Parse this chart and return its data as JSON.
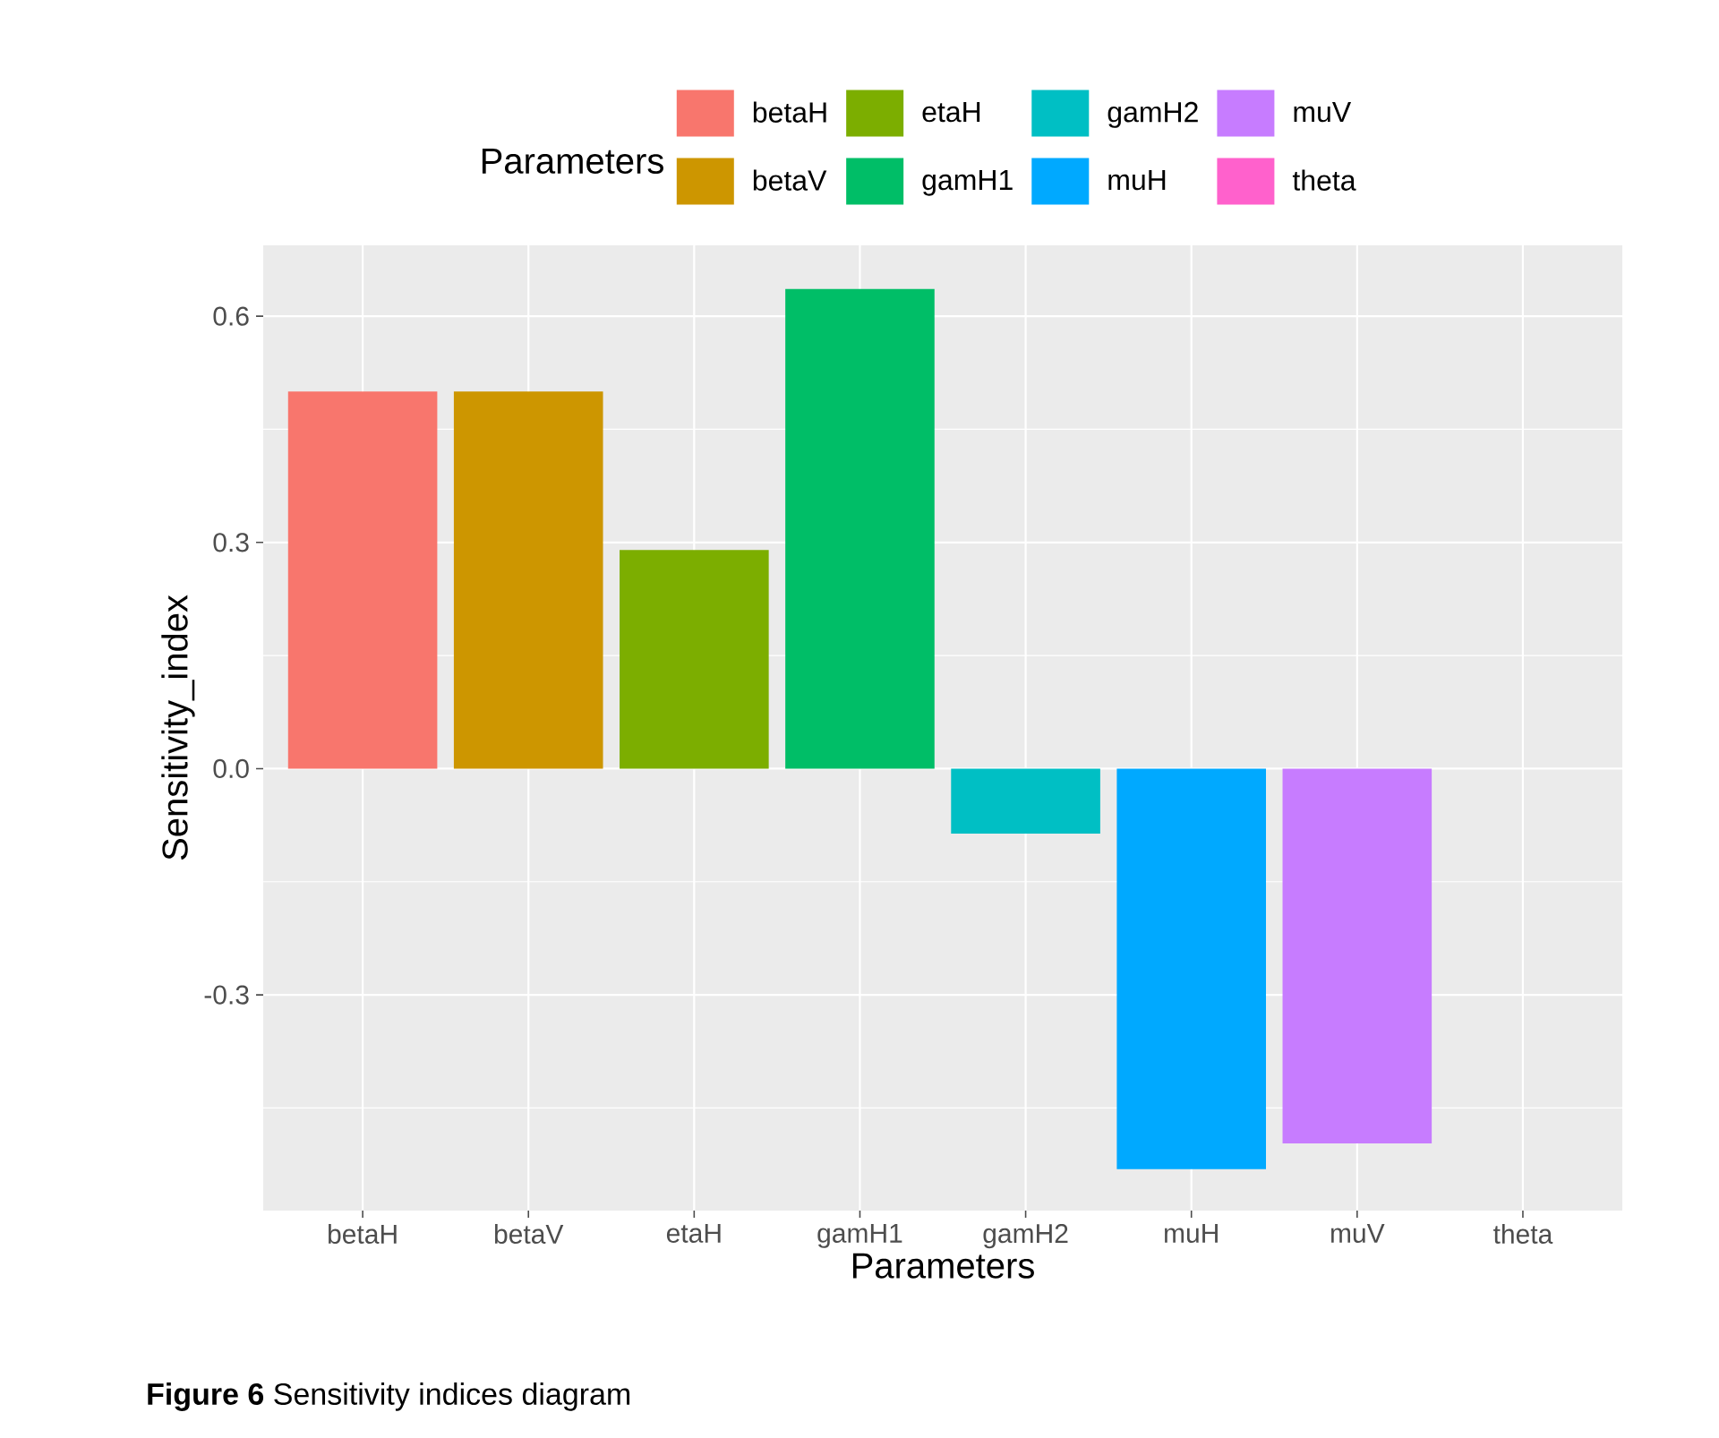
{
  "chart_data": {
    "type": "bar",
    "xlabel": "Parameters",
    "ylabel": "Sensitivity_index",
    "legend_title": "Parameters",
    "legend": "top",
    "grid": true,
    "categories": [
      "betaH",
      "betaV",
      "etaH",
      "gamH1",
      "gamH2",
      "muH",
      "muV",
      "theta"
    ],
    "series": [
      {
        "name": "betaH",
        "color": "#f8766d",
        "values": [
          0.5,
          null,
          null,
          null,
          null,
          null,
          null,
          null
        ]
      },
      {
        "name": "betaV",
        "color": "#cd9600",
        "values": [
          null,
          0.5,
          null,
          null,
          null,
          null,
          null,
          null
        ]
      },
      {
        "name": "etaH",
        "color": "#7cae00",
        "values": [
          null,
          null,
          0.29,
          null,
          null,
          null,
          null,
          null
        ]
      },
      {
        "name": "gamH1",
        "color": "#00be67",
        "values": [
          null,
          null,
          null,
          0.636,
          null,
          null,
          null,
          null
        ]
      },
      {
        "name": "gamH2",
        "color": "#00bfc4",
        "values": [
          null,
          null,
          null,
          null,
          -0.086,
          null,
          null,
          null
        ]
      },
      {
        "name": "muH",
        "color": "#00a9ff",
        "values": [
          null,
          null,
          null,
          null,
          null,
          -0.531,
          null,
          null
        ]
      },
      {
        "name": "muV",
        "color": "#c77cff",
        "values": [
          null,
          null,
          null,
          null,
          null,
          null,
          -0.497,
          null
        ]
      },
      {
        "name": "theta",
        "color": "#ff61cc",
        "values": [
          null,
          null,
          null,
          null,
          null,
          null,
          null,
          0
        ]
      }
    ],
    "ylim": [
      -0.586,
      0.694
    ],
    "yticks": [
      {
        "value": -0.3,
        "label": "-0.3"
      },
      {
        "value": 0,
        "label": "0.0"
      },
      {
        "value": 0.3,
        "label": "0.3"
      },
      {
        "value": 0.6,
        "label": "0.6"
      }
    ],
    "annotations": [
      "**Figure 6** Sensitivity indices diagram"
    ]
  }
}
